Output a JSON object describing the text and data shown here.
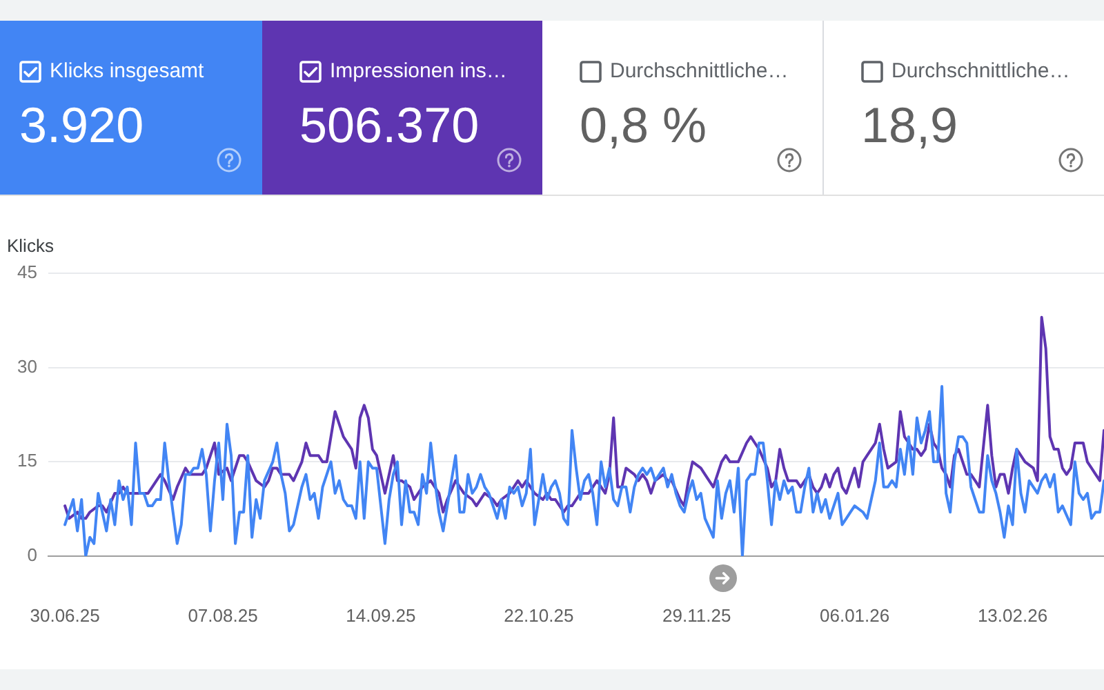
{
  "chart_data": [
    {
      "type": "other",
      "title": "Klicks insgesamt",
      "annotations": [
        "3.920"
      ],
      "color": "#4285f4"
    },
    {
      "type": "other",
      "title": "Impressionen ins…",
      "annotations": [
        "506.370"
      ],
      "color": "#5e35b1"
    },
    {
      "type": "other",
      "title": "Durchschnittliche…",
      "annotations": [
        "0,8 %"
      ]
    },
    {
      "type": "other",
      "title": "Durchschnittliche…",
      "annotations": [
        "18,9"
      ]
    },
    {
      "type": "line",
      "ylabel": "Klicks",
      "xlim": [
        "2025-06-26",
        "2026-03-07"
      ],
      "xticks": [
        {
          "value": "2025-06-30",
          "label": "30.06.25"
        },
        {
          "value": "2025-08-07",
          "label": "07.08.25"
        },
        {
          "value": "2025-09-14",
          "label": "14.09.25"
        },
        {
          "value": "2025-10-22",
          "label": "22.10.25"
        },
        {
          "value": "2025-11-29",
          "label": "29.11.25"
        },
        {
          "value": "2026-01-06",
          "label": "06.01.26"
        },
        {
          "value": "2026-02-13",
          "label": "13.02.26"
        }
      ],
      "ylim": [
        0,
        45
      ],
      "yticks": [
        0,
        15,
        30,
        45
      ],
      "grid": "y",
      "series": [
        {
          "color": "#4285f4",
          "x": [
            "2025-06-30",
            "2025-07-01",
            "2025-07-02",
            "2025-07-03",
            "2025-07-04",
            "2025-07-05",
            "2025-07-06",
            "2025-07-07",
            "2025-07-08",
            "2025-07-10",
            "2025-07-11",
            "2025-07-12",
            "2025-07-13",
            "2025-07-14",
            "2025-07-15",
            "2025-07-16",
            "2025-07-17",
            "2025-07-18",
            "2025-07-19",
            "2025-07-20",
            "2025-07-21",
            "2025-07-22",
            "2025-07-23",
            "2025-07-24",
            "2025-07-25",
            "2025-07-26",
            "2025-07-27",
            "2025-07-28",
            "2025-07-29",
            "2025-07-30",
            "2025-07-31",
            "2025-08-01",
            "2025-08-02",
            "2025-08-03",
            "2025-08-04",
            "2025-08-05",
            "2025-08-06",
            "2025-08-07",
            "2025-08-08",
            "2025-08-09",
            "2025-08-10",
            "2025-08-11",
            "2025-08-12",
            "2025-08-13",
            "2025-08-14",
            "2025-08-15",
            "2025-08-16",
            "2025-08-17",
            "2025-08-19",
            "2025-08-20",
            "2025-08-21",
            "2025-08-22",
            "2025-08-23",
            "2025-08-24",
            "2025-08-26",
            "2025-08-27",
            "2025-08-28",
            "2025-08-29",
            "2025-08-30",
            "2025-08-31",
            "2025-09-02",
            "2025-09-03",
            "2025-09-04",
            "2025-09-05",
            "2025-09-06",
            "2025-09-07",
            "2025-09-08",
            "2025-09-09",
            "2025-09-10",
            "2025-09-11",
            "2025-09-12",
            "2025-09-13",
            "2025-09-14",
            "2025-09-15",
            "2025-09-16",
            "2025-09-17",
            "2025-09-18",
            "2025-09-19",
            "2025-09-20",
            "2025-09-21",
            "2025-09-22",
            "2025-09-23",
            "2025-09-24",
            "2025-09-25",
            "2025-09-26",
            "2025-09-27",
            "2025-09-28",
            "2025-09-29",
            "2025-09-30",
            "2025-10-01",
            "2025-10-02",
            "2025-10-03",
            "2025-10-04",
            "2025-10-05",
            "2025-10-06",
            "2025-10-07",
            "2025-10-08",
            "2025-10-09",
            "2025-10-10",
            "2025-10-11",
            "2025-10-12",
            "2025-10-13",
            "2025-10-14",
            "2025-10-15",
            "2025-10-16",
            "2025-10-17",
            "2025-10-18",
            "2025-10-19",
            "2025-10-20",
            "2025-10-21",
            "2025-10-22",
            "2025-10-23",
            "2025-10-24",
            "2025-10-25",
            "2025-10-26",
            "2025-10-27",
            "2025-10-28",
            "2025-10-29",
            "2025-10-30",
            "2025-10-31",
            "2025-11-01",
            "2025-11-02",
            "2025-11-03",
            "2025-11-04",
            "2025-11-05",
            "2025-11-06",
            "2025-11-07",
            "2025-11-08",
            "2025-11-09",
            "2025-11-10",
            "2025-11-11",
            "2025-11-12",
            "2025-11-13",
            "2025-11-14",
            "2025-11-15",
            "2025-11-16",
            "2025-11-17",
            "2025-11-18",
            "2025-11-19",
            "2025-11-20",
            "2025-11-21",
            "2025-11-22",
            "2025-11-23",
            "2025-11-24",
            "2025-11-25",
            "2025-11-26",
            "2025-11-27",
            "2025-11-28",
            "2025-11-29",
            "2025-11-30",
            "2025-12-01",
            "2025-12-03",
            "2025-12-04",
            "2025-12-05",
            "2025-12-06",
            "2025-12-07",
            "2025-12-08",
            "2025-12-09",
            "2025-12-10",
            "2025-12-11",
            "2025-12-12",
            "2025-12-13",
            "2025-12-14",
            "2025-12-15",
            "2025-12-16",
            "2025-12-17",
            "2025-12-18",
            "2025-12-19",
            "2025-12-20",
            "2025-12-21",
            "2025-12-22",
            "2025-12-23",
            "2025-12-24",
            "2025-12-25",
            "2025-12-26",
            "2025-12-27",
            "2025-12-28",
            "2025-12-29",
            "2025-12-30",
            "2025-12-31",
            "2026-01-01",
            "2026-01-02",
            "2026-01-03",
            "2026-01-04",
            "2026-01-05",
            "2026-01-06",
            "2026-01-08",
            "2026-01-09",
            "2026-01-10",
            "2026-01-11",
            "2026-01-12",
            "2026-01-13",
            "2026-01-14",
            "2026-01-15",
            "2026-01-16",
            "2026-01-17",
            "2026-01-18",
            "2026-01-19",
            "2026-01-20",
            "2026-01-21",
            "2026-01-22",
            "2026-01-23",
            "2026-01-24",
            "2026-01-25",
            "2026-01-26",
            "2026-01-27",
            "2026-01-28",
            "2026-01-29",
            "2026-01-30",
            "2026-01-31",
            "2026-02-01",
            "2026-02-02",
            "2026-02-03",
            "2026-02-04",
            "2026-02-05",
            "2026-02-06",
            "2026-02-07",
            "2026-02-08",
            "2026-02-09",
            "2026-02-10",
            "2026-02-11",
            "2026-02-12",
            "2026-02-13",
            "2026-02-14",
            "2026-02-15",
            "2026-02-16",
            "2026-02-17",
            "2026-02-18",
            "2026-02-19",
            "2026-02-20",
            "2026-02-21",
            "2026-02-22",
            "2026-02-23",
            "2026-02-24",
            "2026-02-25",
            "2026-02-27",
            "2026-02-28",
            "2026-03-01",
            "2026-03-02",
            "2026-03-03",
            "2026-03-04",
            "2026-03-05",
            "2026-03-06",
            "2026-03-07"
          ],
          "values": [
            5,
            7,
            9,
            4,
            9,
            0,
            3,
            2,
            10,
            4,
            9,
            5,
            12,
            9,
            11,
            5,
            18,
            10,
            10,
            8,
            8,
            9,
            9,
            18,
            12,
            7,
            2,
            5,
            13,
            13,
            14,
            14,
            17,
            13,
            4,
            12,
            18,
            9,
            21,
            16,
            2,
            7,
            7,
            16,
            3,
            9,
            6,
            12,
            15,
            18,
            13,
            10,
            4,
            5,
            11,
            13,
            9,
            10,
            6,
            11,
            15,
            10,
            12,
            9,
            8,
            8,
            6,
            15,
            6,
            15,
            14,
            14,
            8,
            2,
            9,
            13,
            15,
            5,
            12,
            7,
            7,
            5,
            13,
            10,
            18,
            12,
            7,
            4,
            8,
            12,
            16,
            7,
            7,
            13,
            10,
            11,
            13,
            11,
            10,
            8,
            6,
            9,
            6,
            11,
            10,
            11,
            8,
            10,
            17,
            5,
            9,
            13,
            9,
            11,
            12,
            10,
            6,
            5,
            20,
            14,
            9,
            12,
            13,
            10,
            5,
            15,
            11,
            14,
            9,
            8,
            11,
            11,
            7,
            11,
            13,
            14,
            13,
            14,
            12,
            13,
            14,
            11,
            13,
            10,
            8,
            7,
            10,
            12,
            9,
            10,
            6,
            3,
            12,
            6,
            10,
            12,
            7,
            14,
            0,
            12,
            13,
            13,
            18,
            18,
            12,
            5,
            12,
            9,
            12,
            10,
            11,
            7,
            7,
            11,
            14,
            7,
            10,
            7,
            9,
            6,
            8,
            10,
            5,
            6,
            7,
            8,
            7,
            6,
            9,
            12,
            18,
            11,
            11,
            12,
            11,
            17,
            13,
            19,
            13,
            22,
            18,
            20,
            23,
            15,
            15,
            27,
            10,
            7,
            15,
            19,
            19,
            18,
            11,
            9,
            7,
            7,
            16,
            12,
            10,
            7,
            3,
            8,
            5,
            17,
            10,
            7,
            12,
            11,
            10,
            12,
            13,
            11,
            13,
            7,
            8,
            5,
            15,
            10,
            9,
            10,
            6,
            7,
            7,
            12
          ]
        },
        {
          "color": "#5e35b1",
          "x": [
            "2025-06-30",
            "2025-07-01",
            "2025-07-03",
            "2025-07-04",
            "2025-07-05",
            "2025-07-06",
            "2025-07-08",
            "2025-07-09",
            "2025-07-10",
            "2025-07-12",
            "2025-07-13",
            "2025-07-14",
            "2025-07-15",
            "2025-07-17",
            "2025-07-18",
            "2025-07-20",
            "2025-07-21",
            "2025-07-23",
            "2025-07-24",
            "2025-07-26",
            "2025-07-27",
            "2025-07-29",
            "2025-07-30",
            "2025-07-31",
            "2025-08-02",
            "2025-08-03",
            "2025-08-05",
            "2025-08-06",
            "2025-08-08",
            "2025-08-09",
            "2025-08-11",
            "2025-08-12",
            "2025-08-13",
            "2025-08-15",
            "2025-08-17",
            "2025-08-18",
            "2025-08-19",
            "2025-08-20",
            "2025-08-21",
            "2025-08-22",
            "2025-08-23",
            "2025-08-24",
            "2025-08-26",
            "2025-08-27",
            "2025-08-28",
            "2025-08-29",
            "2025-08-30",
            "2025-08-31",
            "2025-09-01",
            "2025-09-03",
            "2025-09-04",
            "2025-09-05",
            "2025-09-07",
            "2025-09-08",
            "2025-09-09",
            "2025-09-10",
            "2025-09-11",
            "2025-09-12",
            "2025-09-13",
            "2025-09-14",
            "2025-09-15",
            "2025-09-16",
            "2025-09-17",
            "2025-09-18",
            "2025-09-19",
            "2025-09-21",
            "2025-09-22",
            "2025-09-23",
            "2025-09-24",
            "2025-09-26",
            "2025-09-27",
            "2025-09-28",
            "2025-09-29",
            "2025-09-30",
            "2025-10-02",
            "2025-10-03",
            "2025-10-04",
            "2025-10-06",
            "2025-10-07",
            "2025-10-08",
            "2025-10-09",
            "2025-10-11",
            "2025-10-12",
            "2025-10-13",
            "2025-10-15",
            "2025-10-16",
            "2025-10-17",
            "2025-10-18",
            "2025-10-19",
            "2025-10-20",
            "2025-10-21",
            "2025-10-23",
            "2025-10-24",
            "2025-10-25",
            "2025-10-26",
            "2025-10-28",
            "2025-10-29",
            "2025-10-30",
            "2025-10-31",
            "2025-11-01",
            "2025-11-03",
            "2025-11-04",
            "2025-11-05",
            "2025-11-07",
            "2025-11-08",
            "2025-11-09",
            "2025-11-10",
            "2025-11-11",
            "2025-11-12",
            "2025-11-14",
            "2025-11-15",
            "2025-11-16",
            "2025-11-17",
            "2025-11-18",
            "2025-11-19",
            "2025-11-21",
            "2025-11-22",
            "2025-11-23",
            "2025-11-25",
            "2025-11-26",
            "2025-11-27",
            "2025-11-28",
            "2025-11-30",
            "2025-12-01",
            "2025-12-03",
            "2025-12-04",
            "2025-12-05",
            "2025-12-06",
            "2025-12-07",
            "2025-12-08",
            "2025-12-09",
            "2025-12-11",
            "2025-12-12",
            "2025-12-13",
            "2025-12-14",
            "2025-12-16",
            "2025-12-17",
            "2025-12-18",
            "2025-12-19",
            "2025-12-20",
            "2025-12-21",
            "2025-12-23",
            "2025-12-24",
            "2025-12-26",
            "2025-12-27",
            "2025-12-28",
            "2025-12-29",
            "2025-12-30",
            "2025-12-31",
            "2026-01-01",
            "2026-01-02",
            "2026-01-03",
            "2026-01-04",
            "2026-01-05",
            "2026-01-06",
            "2026-01-07",
            "2026-01-08",
            "2026-01-09",
            "2026-01-10",
            "2026-01-11",
            "2026-01-12",
            "2026-01-13",
            "2026-01-14",
            "2026-01-16",
            "2026-01-17",
            "2026-01-18",
            "2026-01-19",
            "2026-01-20",
            "2026-01-21",
            "2026-01-22",
            "2026-01-23",
            "2026-01-24",
            "2026-01-25",
            "2026-01-26",
            "2026-01-27",
            "2026-01-28",
            "2026-01-29",
            "2026-01-30",
            "2026-01-31",
            "2026-02-01",
            "2026-02-02",
            "2026-02-03",
            "2026-02-04",
            "2026-02-05",
            "2026-02-07",
            "2026-02-08",
            "2026-02-09",
            "2026-02-10",
            "2026-02-11",
            "2026-02-12",
            "2026-02-13",
            "2026-02-14",
            "2026-02-15",
            "2026-02-16",
            "2026-02-18",
            "2026-02-19",
            "2026-02-20",
            "2026-02-21",
            "2026-02-22",
            "2026-02-23",
            "2026-02-24",
            "2026-02-25",
            "2026-02-26",
            "2026-02-27",
            "2026-02-28",
            "2026-03-02",
            "2026-03-03",
            "2026-03-04",
            "2026-03-05",
            "2026-03-06",
            "2026-03-07"
          ],
          "values": [
            8,
            6,
            7,
            6,
            6,
            7,
            8,
            8,
            7,
            10,
            10,
            11,
            10,
            10,
            10,
            10,
            11,
            13,
            12,
            9,
            11,
            14,
            13,
            13,
            13,
            14,
            18,
            13,
            14,
            12,
            16,
            16,
            15,
            12,
            11,
            12,
            14,
            14,
            13,
            13,
            13,
            12,
            15,
            18,
            16,
            16,
            16,
            15,
            15,
            23,
            21,
            19,
            17,
            14,
            22,
            24,
            22,
            17,
            16,
            13,
            10,
            13,
            16,
            12,
            12,
            11,
            9,
            10,
            11,
            12,
            11,
            10,
            7,
            9,
            12,
            11,
            10,
            9,
            8,
            9,
            10,
            9,
            8,
            9,
            10,
            11,
            12,
            11,
            12,
            11,
            10,
            9,
            10,
            9,
            9,
            7,
            8,
            8,
            9,
            10,
            10,
            11,
            12,
            10,
            13,
            22,
            11,
            11,
            14,
            13,
            12,
            13,
            12,
            10,
            12,
            13,
            12,
            12,
            9,
            8,
            12,
            15,
            14,
            13,
            11,
            13,
            15,
            16,
            15,
            15,
            15,
            18,
            19,
            18,
            17,
            14,
            11,
            12,
            17,
            14,
            12,
            12,
            11,
            13,
            11,
            10,
            11,
            13,
            11,
            13,
            14,
            11,
            10,
            12,
            14,
            11,
            15,
            16,
            17,
            18,
            21,
            17,
            14,
            15,
            23,
            19,
            18,
            17,
            17,
            16,
            17,
            21,
            18,
            17,
            14,
            13,
            11,
            16,
            17,
            15,
            13,
            13,
            12,
            11,
            24,
            16,
            11,
            13,
            13,
            10,
            14,
            17,
            16,
            15,
            14,
            12,
            38,
            33,
            19,
            17,
            17,
            14,
            13,
            14,
            18,
            18,
            15,
            14,
            13,
            12,
            20
          ]
        }
      ]
    }
  ]
}
